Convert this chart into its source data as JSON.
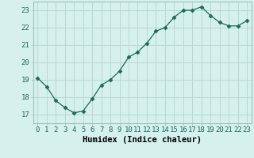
{
  "x": [
    0,
    1,
    2,
    3,
    4,
    5,
    6,
    7,
    8,
    9,
    10,
    11,
    12,
    13,
    14,
    15,
    16,
    17,
    18,
    19,
    20,
    21,
    22,
    23
  ],
  "y": [
    19.1,
    18.6,
    17.8,
    17.4,
    17.1,
    17.2,
    17.9,
    18.7,
    19.0,
    19.5,
    20.3,
    20.6,
    21.1,
    21.8,
    22.0,
    22.6,
    23.0,
    23.0,
    23.2,
    22.7,
    22.3,
    22.1,
    22.1,
    22.4
  ],
  "line_color": "#1a6b5a",
  "marker": "D",
  "markersize": 2.5,
  "linewidth": 0.9,
  "background_color": "#d6f0ee",
  "grid_color": "#b8d8d4",
  "spine_color": "#a0c0bc",
  "xlabel": "Humidex (Indice chaleur)",
  "xlim": [
    -0.5,
    23.5
  ],
  "ylim": [
    16.5,
    23.5
  ],
  "yticks": [
    17,
    18,
    19,
    20,
    21,
    22,
    23
  ],
  "xticks": [
    0,
    1,
    2,
    3,
    4,
    5,
    6,
    7,
    8,
    9,
    10,
    11,
    12,
    13,
    14,
    15,
    16,
    17,
    18,
    19,
    20,
    21,
    22,
    23
  ],
  "xlabel_fontsize": 7.5,
  "tick_fontsize": 6.5
}
